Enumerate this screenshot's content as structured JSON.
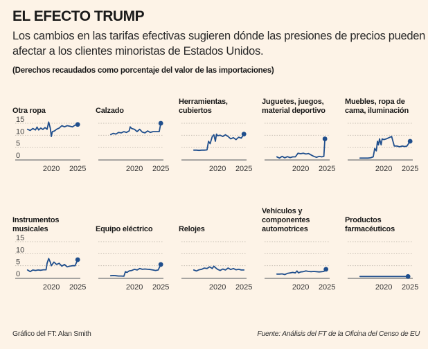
{
  "header": {
    "title": "EL EFECTO TRUMP",
    "subtitle": "Los cambios en las tarifas efectivas sugieren dónde las presiones de precios pueden afectar a los clientes minoristas de Estados Unidos.",
    "unit_note": "(Derechos recaudados como porcentaje del valor de las importaciones)"
  },
  "footer": {
    "credit": "Gráfico del FT: Alan Smith",
    "source": "Fuente: Análisis del FT de la Oficina del Censo de EU"
  },
  "colors": {
    "background": "#fdf3e7",
    "line": "#1f4e8c",
    "grid": "#c8c0b5",
    "axis": "#8a8a8a"
  },
  "chart_data": {
    "type": "line",
    "layout": "small-multiples",
    "ylim": [
      0,
      15
    ],
    "yticks": [
      0,
      5,
      10,
      15
    ],
    "xlim": [
      2015,
      2025.5
    ],
    "xticks": [
      2020,
      2025
    ],
    "grid": true,
    "panels": [
      {
        "title": "Otra ropa",
        "show_y_labels": true,
        "x": [
          2015.5,
          2016,
          2016.5,
          2017,
          2017.3,
          2017.6,
          2018,
          2018.4,
          2018.8,
          2019.2,
          2019.5,
          2019.8,
          2020.0,
          2020.2,
          2020.6,
          2021,
          2021.5,
          2022,
          2022.5,
          2023,
          2023.5,
          2024,
          2024.5,
          2025
        ],
        "y": [
          12.5,
          12,
          12.8,
          12.2,
          13.4,
          12.2,
          13,
          12.4,
          13.2,
          12.5,
          15.5,
          13,
          9.5,
          11.5,
          11.8,
          12.5,
          13,
          14,
          13.5,
          14,
          13.8,
          13.5,
          14.2,
          14.5
        ]
      },
      {
        "title": "Calzado",
        "show_y_labels": false,
        "x": [
          2015.5,
          2016,
          2016.5,
          2017,
          2017.5,
          2018,
          2018.5,
          2019,
          2019.2,
          2019.5,
          2020,
          2020.5,
          2021,
          2021.5,
          2022,
          2022.5,
          2023,
          2023.5,
          2024,
          2024.7,
          2025
        ],
        "y": [
          10.3,
          10.8,
          10.5,
          11.2,
          11,
          11.5,
          11.2,
          11.8,
          13.5,
          12.8,
          12.5,
          11.5,
          12.5,
          11.3,
          11,
          11.8,
          11.2,
          11.5,
          11.5,
          11.5,
          15
        ]
      },
      {
        "title": "Herramientas, cubiertos",
        "show_y_labels": false,
        "x": [
          2015.5,
          2016,
          2016.5,
          2017,
          2017.5,
          2018,
          2018.3,
          2018.6,
          2019,
          2019.3,
          2019.6,
          2019.8,
          2020,
          2020.5,
          2021,
          2021.5,
          2022,
          2022.5,
          2023,
          2023.5,
          2024,
          2024.5,
          2025
        ],
        "y": [
          3.8,
          3.8,
          3.7,
          3.8,
          3.8,
          3.9,
          7.5,
          6.5,
          9.5,
          10.2,
          7.5,
          10.5,
          9.8,
          10,
          9.5,
          10.2,
          9.5,
          8.5,
          9,
          8.2,
          9.2,
          8.8,
          10.5
        ]
      },
      {
        "title": "Juguetes, juegos, material deportivo",
        "show_y_labels": false,
        "x": [
          2015.5,
          2016,
          2016.5,
          2017,
          2017.5,
          2018,
          2018.5,
          2019,
          2019.5,
          2020,
          2020.5,
          2021,
          2021.5,
          2022,
          2022.5,
          2023,
          2023.5,
          2024,
          2024.4,
          2024.6
        ],
        "y": [
          1,
          0.5,
          1.2,
          0.6,
          1.1,
          0.7,
          1,
          1,
          2.5,
          2.3,
          2.5,
          2.2,
          2.4,
          1.8,
          1.2,
          0.8,
          1.2,
          1,
          1.2,
          8.5
        ]
      },
      {
        "title": "Muebles, ropa de cama, iluminación",
        "show_y_labels": false,
        "x": [
          2015.5,
          2016,
          2016.5,
          2017,
          2017.5,
          2018,
          2018.3,
          2018.6,
          2018.8,
          2019,
          2019.2,
          2019.5,
          2019.7,
          2020,
          2020.5,
          2021,
          2021.5,
          2022,
          2022.5,
          2023,
          2023.5,
          2024,
          2024.4,
          2025
        ],
        "y": [
          0.5,
          0.5,
          0.5,
          0.5,
          0.6,
          1,
          4.5,
          3.5,
          7.5,
          6,
          8.5,
          6,
          8.5,
          8.2,
          8.5,
          9,
          9.5,
          5.5,
          5.5,
          5.2,
          5.5,
          5.3,
          5.5,
          7.5
        ]
      },
      {
        "title": "Instrumentos musicales",
        "show_y_labels": true,
        "x": [
          2015.5,
          2016,
          2016.5,
          2017,
          2017.5,
          2018,
          2018.5,
          2019,
          2019.2,
          2019.5,
          2019.8,
          2020,
          2020.5,
          2021,
          2021.5,
          2022,
          2022.5,
          2023,
          2023.5,
          2024,
          2024.5,
          2025
        ],
        "y": [
          3.2,
          2.5,
          3.2,
          3,
          3.2,
          3.1,
          3.3,
          3.3,
          6,
          8,
          6.5,
          5,
          6.5,
          5.5,
          6,
          4.8,
          5.5,
          4.5,
          4.8,
          5,
          5,
          7.5
        ]
      },
      {
        "title": "Equipo eléctrico",
        "show_y_labels": false,
        "x": [
          2015.5,
          2016,
          2016.5,
          2017,
          2017.5,
          2018,
          2018.3,
          2018.6,
          2019,
          2019.5,
          2020,
          2020.5,
          2021,
          2021.5,
          2022,
          2022.5,
          2023,
          2023.5,
          2024,
          2024.5,
          2025
        ],
        "y": [
          0.8,
          0.9,
          0.8,
          0.7,
          0.7,
          0.6,
          2.5,
          2.2,
          2.8,
          3,
          3.5,
          3.2,
          3.8,
          3.5,
          3.6,
          3.5,
          3.4,
          3.2,
          3,
          3.2,
          5.5
        ]
      },
      {
        "title": "Relojes",
        "show_y_labels": false,
        "x": [
          2015.5,
          2016,
          2016.5,
          2017,
          2017.5,
          2018,
          2018.5,
          2019,
          2019.3,
          2019.6,
          2020,
          2020.5,
          2021,
          2021.5,
          2022,
          2022.5,
          2023,
          2023.5,
          2024,
          2024.5,
          2025
        ],
        "y": [
          3.2,
          2.8,
          3.3,
          3.5,
          4,
          3.8,
          4.5,
          3.8,
          4.8,
          4.2,
          3.5,
          3,
          3.6,
          3.2,
          4,
          3.4,
          3.8,
          3.3,
          3.5,
          3.2,
          3.2
        ]
      },
      {
        "title": "Vehículos y componentes automotrices",
        "show_y_labels": false,
        "x": [
          2015.5,
          2016,
          2016.5,
          2017,
          2017.5,
          2018,
          2018.5,
          2019,
          2019.3,
          2019.6,
          2020,
          2020.5,
          2021,
          2021.5,
          2022,
          2022.5,
          2023,
          2023.5,
          2024,
          2024.4,
          2024.8
        ],
        "y": [
          1.5,
          1.5,
          1.6,
          1.3,
          1.8,
          2,
          2.2,
          2,
          2.8,
          2,
          2.4,
          2.5,
          2.8,
          2.6,
          2.5,
          2.6,
          2.5,
          2.4,
          2.5,
          2.6,
          3.5
        ]
      },
      {
        "title": "Productos farmacéuticos",
        "show_y_labels": false,
        "x": [
          2015.5,
          2017,
          2018,
          2019,
          2020,
          2021,
          2022,
          2023,
          2024,
          2024.6
        ],
        "y": [
          0.5,
          0.5,
          0.5,
          0.5,
          0.5,
          0.5,
          0.5,
          0.5,
          0.5,
          0.5
        ]
      }
    ]
  }
}
